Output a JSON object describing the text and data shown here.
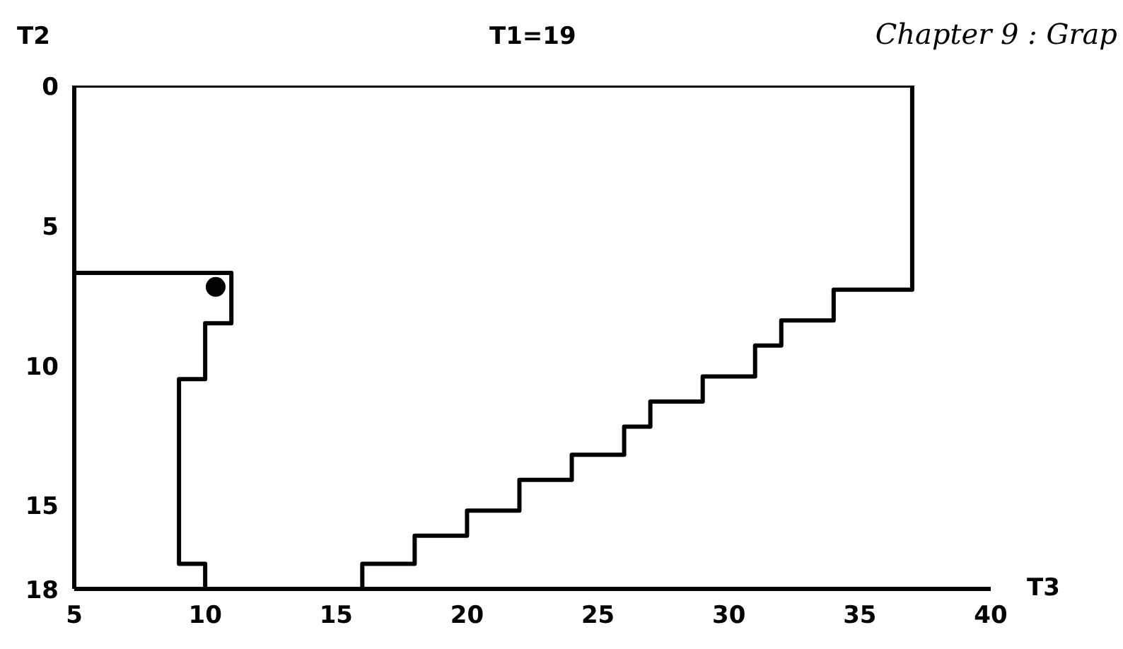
{
  "chart_data": {
    "type": "line",
    "title": "T1=19",
    "xlabel": "T3",
    "ylabel": "T2",
    "annotations": [
      "Chapter 9 : Grap"
    ],
    "xlim": [
      5,
      40
    ],
    "ylim": [
      18,
      0
    ],
    "xticks": [
      5,
      10,
      15,
      20,
      25,
      30,
      35,
      40
    ],
    "yticks": [
      0,
      5,
      10,
      15,
      18
    ],
    "grid": false,
    "line_style": "solid",
    "series": [
      {
        "color": "#000000",
        "x": [
          5,
          37,
          37,
          34,
          34,
          32,
          32,
          31,
          31,
          29,
          29,
          27,
          27,
          26,
          26,
          24,
          24,
          22,
          22,
          20,
          20,
          18,
          18,
          16,
          16
        ],
        "values": [
          0,
          0,
          7.3,
          7.3,
          8.4,
          8.4,
          9.3,
          9.3,
          10.4,
          10.4,
          11.3,
          11.3,
          12.2,
          12.2,
          13.2,
          13.2,
          14.1,
          14.1,
          15.2,
          15.2,
          16.1,
          16.1,
          17.1,
          17.1,
          18
        ]
      },
      {
        "color": "#000000",
        "x": [
          5,
          11,
          11,
          10,
          10,
          9,
          9,
          10,
          10
        ],
        "values": [
          6.7,
          6.7,
          8.5,
          8.5,
          10.5,
          10.5,
          17.1,
          17.1,
          18
        ]
      },
      {
        "type": "scatter",
        "marker": "circle",
        "color": "#000000",
        "x": [
          10.4
        ],
        "values": [
          7.2
        ]
      }
    ]
  }
}
